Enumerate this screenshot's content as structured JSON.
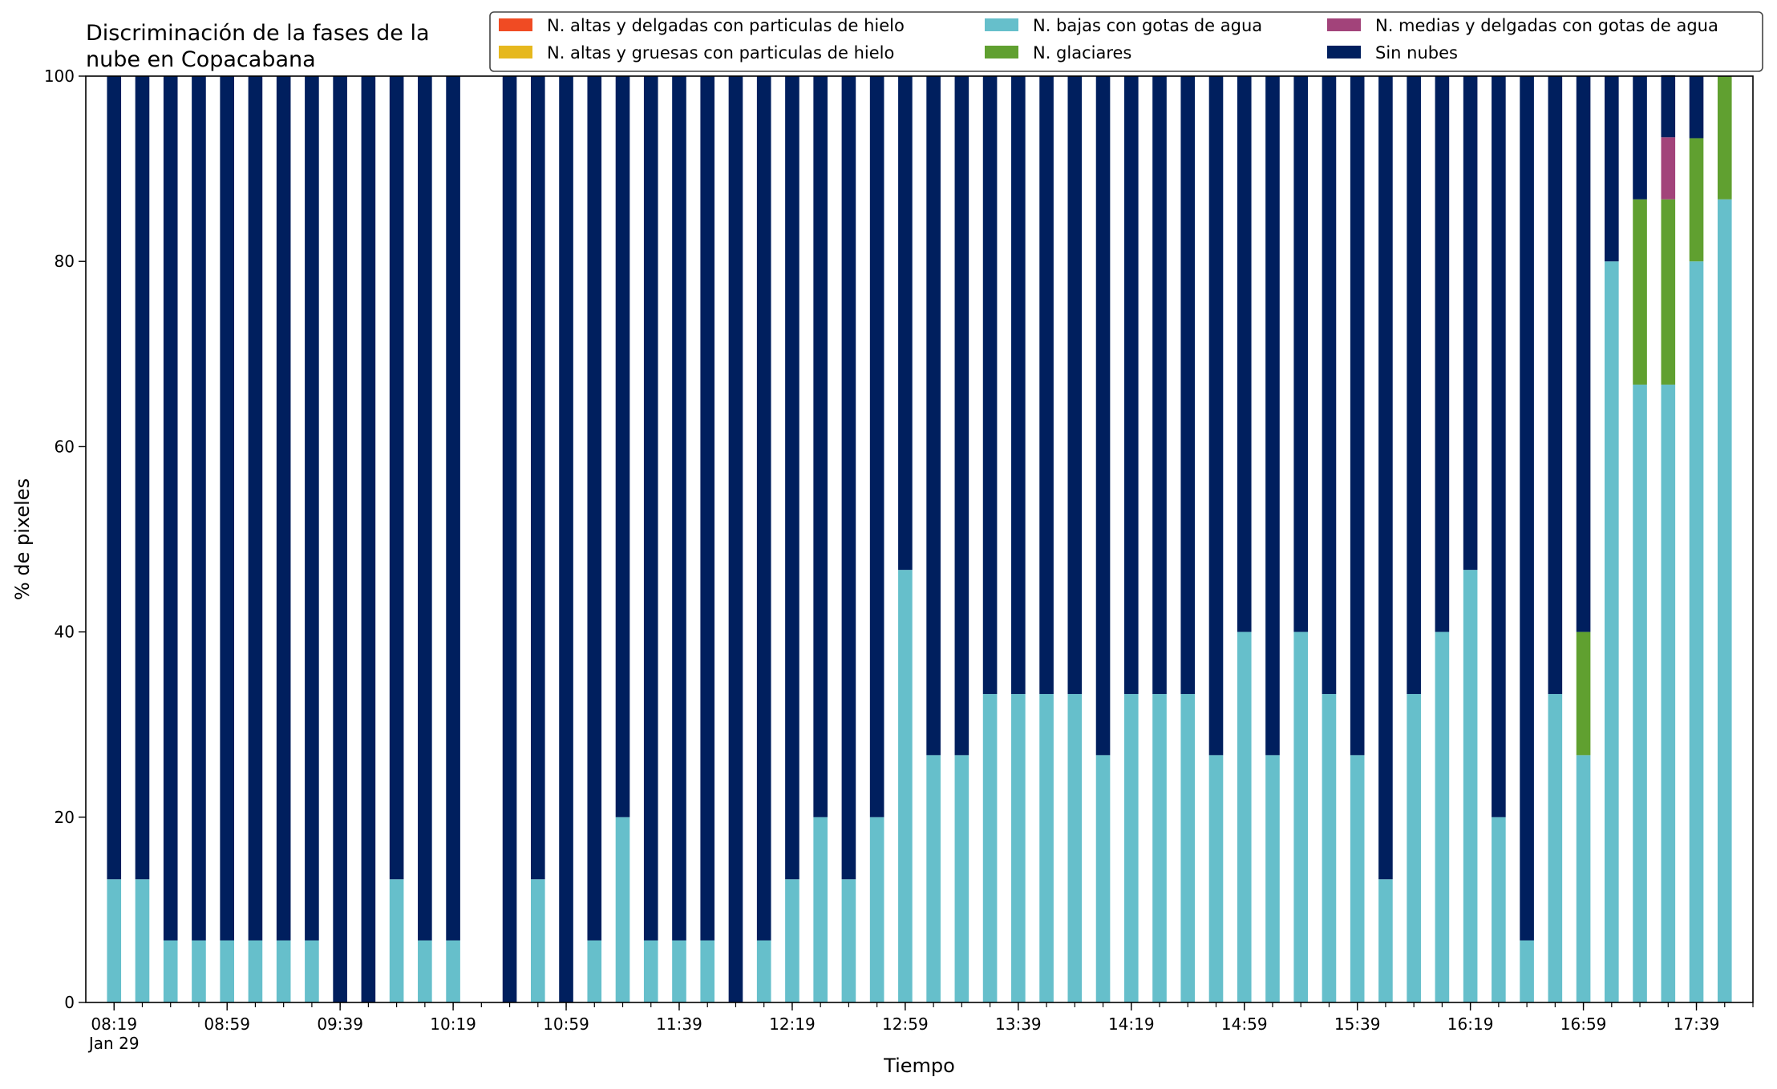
{
  "chart_data": {
    "type": "bar",
    "stacked": true,
    "title_lines": [
      "Discriminación de la fases de la",
      "nube en Copacabana"
    ],
    "xlabel": "Tiempo",
    "ylabel": "% de pixeles",
    "ylim": [
      0,
      100
    ],
    "yticks": [
      0,
      20,
      40,
      60,
      80,
      100
    ],
    "xlim": [
      "08:09",
      "17:59"
    ],
    "bar_interval_minutes": 10,
    "bar_width_minutes": 5,
    "xticks_major": [
      "08:19",
      "08:59",
      "09:39",
      "10:19",
      "10:59",
      "11:39",
      "12:19",
      "12:59",
      "13:39",
      "14:19",
      "14:59",
      "15:39",
      "16:19",
      "16:59",
      "17:39"
    ],
    "date_sublabel": "Jan 29",
    "legend_position": "top-right",
    "legend_columns": 3,
    "x": [
      "08:19",
      "08:29",
      "08:39",
      "08:49",
      "08:59",
      "09:09",
      "09:19",
      "09:29",
      "09:39",
      "09:49",
      "09:59",
      "10:09",
      "10:19",
      "10:29",
      "10:39",
      "10:49",
      "10:59",
      "11:09",
      "11:19",
      "11:29",
      "11:39",
      "11:49",
      "11:59",
      "12:09",
      "12:19",
      "12:29",
      "12:39",
      "12:49",
      "12:59",
      "13:09",
      "13:19",
      "13:29",
      "13:39",
      "13:49",
      "13:59",
      "14:09",
      "14:19",
      "14:29",
      "14:39",
      "14:49",
      "14:59",
      "15:09",
      "15:19",
      "15:29",
      "15:39",
      "15:49",
      "15:59",
      "16:09",
      "16:19",
      "16:29",
      "16:39",
      "16:49",
      "16:59",
      "17:09",
      "17:19",
      "17:29",
      "17:39",
      "17:49"
    ],
    "series": [
      {
        "name": "N. altas y delgadas con particulas de hielo",
        "color": "#f04b23",
        "values": [
          0,
          0,
          0,
          0,
          0,
          0,
          0,
          0,
          0,
          0,
          0,
          0,
          0,
          0,
          0,
          0,
          0,
          0,
          0,
          0,
          0,
          0,
          0,
          0,
          0,
          0,
          0,
          0,
          0,
          0,
          0,
          0,
          0,
          0,
          0,
          0,
          0,
          0,
          0,
          0,
          0,
          0,
          0,
          0,
          0,
          0,
          0,
          0,
          0,
          0,
          0,
          0,
          0,
          0,
          0,
          0,
          0,
          0
        ]
      },
      {
        "name": "N. altas y gruesas con particulas de hielo",
        "color": "#e6b81e",
        "values": [
          0,
          0,
          0,
          0,
          0,
          0,
          0,
          0,
          0,
          0,
          0,
          0,
          0,
          0,
          0,
          0,
          0,
          0,
          0,
          0,
          0,
          0,
          0,
          0,
          0,
          0,
          0,
          0,
          0,
          0,
          0,
          0,
          0,
          0,
          0,
          0,
          0,
          0,
          0,
          0,
          0,
          0,
          0,
          0,
          0,
          0,
          0,
          0,
          0,
          0,
          0,
          0,
          0,
          0,
          0,
          0,
          0,
          0
        ]
      },
      {
        "name": "N. bajas con gotas de agua",
        "color": "#66bfcb",
        "values": [
          13.3,
          13.3,
          6.7,
          6.7,
          6.7,
          6.7,
          6.7,
          6.7,
          0,
          0,
          13.3,
          6.7,
          6.7,
          0,
          0,
          13.3,
          0,
          6.7,
          20,
          6.7,
          6.7,
          6.7,
          0,
          6.7,
          13.3,
          20,
          13.3,
          20,
          46.7,
          26.7,
          26.7,
          33.3,
          33.3,
          33.3,
          33.3,
          26.7,
          33.3,
          33.3,
          33.3,
          26.7,
          40,
          26.7,
          40,
          33.3,
          26.7,
          13.3,
          33.3,
          40,
          46.7,
          20,
          6.7,
          33.3,
          26.7,
          80,
          66.7,
          66.7,
          80,
          86.7
        ]
      },
      {
        "name": "N. glaciares",
        "color": "#60a030",
        "values": [
          0,
          0,
          0,
          0,
          0,
          0,
          0,
          0,
          0,
          0,
          0,
          0,
          0,
          0,
          0,
          0,
          0,
          0,
          0,
          0,
          0,
          0,
          0,
          0,
          0,
          0,
          0,
          0,
          0,
          0,
          0,
          0,
          0,
          0,
          0,
          0,
          0,
          0,
          0,
          0,
          0,
          0,
          0,
          0,
          0,
          0,
          0,
          0,
          0,
          0,
          0,
          0,
          13.3,
          0,
          20,
          20,
          13.3,
          13.3
        ]
      },
      {
        "name": "N. medias y delgadas con gotas de agua",
        "color": "#a2437a",
        "values": [
          0,
          0,
          0,
          0,
          0,
          0,
          0,
          0,
          0,
          0,
          0,
          0,
          0,
          0,
          0,
          0,
          0,
          0,
          0,
          0,
          0,
          0,
          0,
          0,
          0,
          0,
          0,
          0,
          0,
          0,
          0,
          0,
          0,
          0,
          0,
          0,
          0,
          0,
          0,
          0,
          0,
          0,
          0,
          0,
          0,
          0,
          0,
          0,
          0,
          0,
          0,
          0,
          0,
          0,
          0,
          6.7,
          0,
          0
        ]
      },
      {
        "name": "Sin nubes",
        "color": "#001f5e",
        "values": [
          86.7,
          86.7,
          93.3,
          93.3,
          93.3,
          93.3,
          93.3,
          93.3,
          100,
          100,
          86.7,
          93.3,
          93.3,
          0,
          100,
          86.7,
          100,
          93.3,
          80,
          93.3,
          93.3,
          93.3,
          100,
          93.3,
          86.7,
          80,
          86.7,
          80,
          53.3,
          73.3,
          73.3,
          66.7,
          66.7,
          66.7,
          66.7,
          73.3,
          66.7,
          66.7,
          66.7,
          73.3,
          60,
          73.3,
          60,
          66.7,
          73.3,
          86.7,
          66.7,
          60,
          53.3,
          80,
          93.3,
          66.7,
          60,
          20,
          13.3,
          6.7,
          6.7,
          0
        ]
      }
    ]
  }
}
